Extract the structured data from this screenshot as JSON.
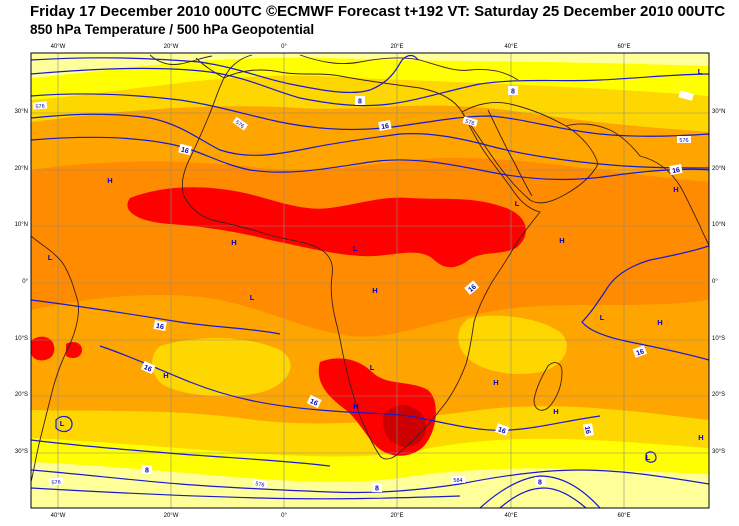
{
  "header": {
    "line1": "Friday 17 December 2010 00UTC ©ECMWF Forecast t+192 VT: Saturday 25 December 2010 00UTC",
    "line2": "850 hPa Temperature / 500 hPa Geopotential"
  },
  "colors": {
    "pale_yellow": "#ffff99",
    "yellow": "#ffff00",
    "light_orange": "#ffd700",
    "orange": "#ffa500",
    "dark_orange": "#ff8c00",
    "red_orange": "#ff4500",
    "red": "#ff0000",
    "dark_red": "#cc0000",
    "coastline": "#3a1f1f",
    "contour": "#1a1acc",
    "gridline": "#8a8a8a"
  },
  "axes": {
    "lon_labels": [
      "40°W",
      "20°W",
      "0°",
      "20°E",
      "40°E",
      "60°E"
    ],
    "lat_labels": [
      "30°N",
      "20°N",
      "10°N",
      "0°",
      "10°S",
      "20°S",
      "30°S"
    ]
  },
  "contour_labels": [
    {
      "text": "16"
    },
    {
      "text": "16"
    },
    {
      "text": "16"
    },
    {
      "text": "16"
    },
    {
      "text": "16"
    },
    {
      "text": "16"
    },
    {
      "text": "16"
    },
    {
      "text": "16"
    },
    {
      "text": "16"
    },
    {
      "text": "16"
    },
    {
      "text": "8"
    },
    {
      "text": "8"
    },
    {
      "text": "8"
    },
    {
      "text": "8"
    },
    {
      "text": "8"
    },
    {
      "text": "576"
    },
    {
      "text": "576"
    },
    {
      "text": "576"
    },
    {
      "text": "576"
    },
    {
      "text": "576"
    },
    {
      "text": "576"
    },
    {
      "text": "584"
    }
  ],
  "pressure_markers": [
    {
      "text": "H"
    },
    {
      "text": "H"
    },
    {
      "text": "H"
    },
    {
      "text": "H"
    },
    {
      "text": "H"
    },
    {
      "text": "H"
    },
    {
      "text": "H"
    },
    {
      "text": "H"
    },
    {
      "text": "H"
    },
    {
      "text": "H"
    },
    {
      "text": "H"
    },
    {
      "text": "L"
    },
    {
      "text": "L"
    },
    {
      "text": "L"
    },
    {
      "text": "L"
    },
    {
      "text": "L"
    },
    {
      "text": "L"
    },
    {
      "text": "L"
    },
    {
      "text": "L"
    },
    {
      "text": "L"
    }
  ]
}
